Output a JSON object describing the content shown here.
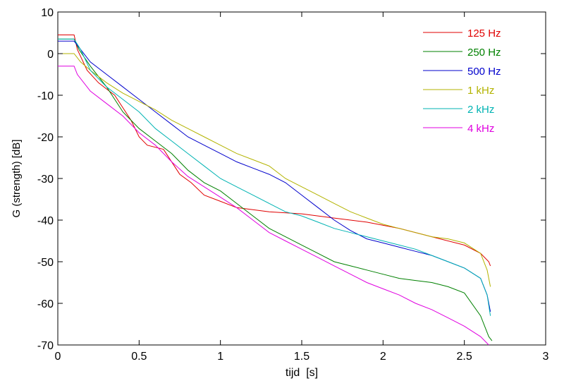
{
  "chart_data": {
    "type": "line",
    "xlabel": "tijd  [s]",
    "ylabel": "G (strength) [dB]",
    "xlim": [
      0,
      3
    ],
    "ylim": [
      -70,
      10
    ],
    "x_ticks": [
      0,
      0.5,
      1,
      1.5,
      2,
      2.5,
      3
    ],
    "x_tick_labels": [
      "0",
      "0.5",
      "1",
      "1.5",
      "2",
      "2.5",
      "3"
    ],
    "y_ticks": [
      10,
      0,
      -10,
      -20,
      -30,
      -40,
      -50,
      -60,
      -70
    ],
    "y_tick_labels": [
      "10",
      "0",
      "-10",
      "-20",
      "-30",
      "-40",
      "-50",
      "-60",
      "-70"
    ],
    "grid": false,
    "legend_position": "top-right",
    "series": [
      {
        "name": "125 Hz",
        "color": "#e00000",
        "x": [
          0,
          0.1,
          0.12,
          0.18,
          0.25,
          0.35,
          0.45,
          0.5,
          0.55,
          0.65,
          0.75,
          0.82,
          0.9,
          1.0,
          1.1,
          1.3,
          1.5,
          1.7,
          1.9,
          2.1,
          2.3,
          2.5,
          2.6,
          2.65,
          2.66
        ],
        "y": [
          4.5,
          4.5,
          1,
          -4,
          -7,
          -10,
          -16,
          -20,
          -22,
          -23,
          -29,
          -31,
          -34,
          -35.5,
          -37,
          -38,
          -38.5,
          -39.5,
          -40.5,
          -42,
          -44,
          -46,
          -48,
          -50,
          -51
        ]
      },
      {
        "name": "250 Hz",
        "color": "#008000",
        "x": [
          0,
          0.1,
          0.13,
          0.2,
          0.3,
          0.4,
          0.5,
          0.6,
          0.7,
          0.8,
          0.9,
          1.0,
          1.1,
          1.2,
          1.3,
          1.4,
          1.5,
          1.6,
          1.7,
          1.8,
          1.9,
          2.0,
          2.1,
          2.2,
          2.3,
          2.4,
          2.5,
          2.6,
          2.65,
          2.67
        ],
        "y": [
          3.5,
          3.5,
          1,
          -3,
          -8,
          -14,
          -18,
          -21,
          -24,
          -28,
          -31,
          -33,
          -36,
          -39,
          -42,
          -44,
          -46,
          -48,
          -50,
          -51,
          -52,
          -53,
          -54,
          -54.5,
          -55,
          -56,
          -57.5,
          -63,
          -68,
          -69
        ]
      },
      {
        "name": "500 Hz",
        "color": "#0000cc",
        "x": [
          0,
          0.1,
          0.14,
          0.2,
          0.3,
          0.4,
          0.5,
          0.6,
          0.7,
          0.8,
          0.9,
          1.0,
          1.1,
          1.2,
          1.3,
          1.4,
          1.5,
          1.6,
          1.7,
          1.8,
          1.9,
          2.0,
          2.1,
          2.2,
          2.3,
          2.4,
          2.5,
          2.6,
          2.64,
          2.66
        ],
        "y": [
          3,
          3,
          1,
          -2,
          -5,
          -8,
          -11,
          -14,
          -17,
          -20,
          -22,
          -24,
          -26,
          -27.5,
          -29,
          -31,
          -34,
          -37,
          -40,
          -42.5,
          -44.5,
          -45.5,
          -46.5,
          -47.5,
          -48.5,
          -50,
          -51.5,
          -54,
          -58,
          -62
        ]
      },
      {
        "name": " 1 kHz",
        "color": "#b3b300",
        "x": [
          0,
          0.1,
          0.14,
          0.2,
          0.3,
          0.4,
          0.5,
          0.6,
          0.7,
          0.8,
          0.9,
          1.0,
          1.1,
          1.2,
          1.3,
          1.4,
          1.5,
          1.6,
          1.7,
          1.8,
          1.9,
          2.0,
          2.1,
          2.2,
          2.3,
          2.4,
          2.5,
          2.6,
          2.64,
          2.66
        ],
        "y": [
          0,
          0,
          -2,
          -4,
          -7,
          -9.5,
          -11.5,
          -13.5,
          -16,
          -18,
          -20,
          -22,
          -24,
          -25.5,
          -27,
          -30,
          -32,
          -34,
          -36,
          -38,
          -39.5,
          -41,
          -42,
          -43,
          -44,
          -44.5,
          -45.5,
          -48,
          -52,
          -56
        ]
      },
      {
        "name": "2 kHz",
        "color": "#00b3b3",
        "x": [
          0,
          0.1,
          0.14,
          0.2,
          0.3,
          0.4,
          0.5,
          0.6,
          0.7,
          0.8,
          0.9,
          1.0,
          1.1,
          1.2,
          1.3,
          1.4,
          1.5,
          1.6,
          1.7,
          1.8,
          1.9,
          2.0,
          2.1,
          2.2,
          2.3,
          2.4,
          2.5,
          2.6,
          2.64,
          2.66
        ],
        "y": [
          3.5,
          3.5,
          1,
          -4,
          -8,
          -11,
          -14,
          -18,
          -21,
          -24,
          -27,
          -30,
          -32,
          -34,
          -36,
          -38,
          -39,
          -40.5,
          -42,
          -43,
          -44,
          -45,
          -46,
          -47,
          -48.5,
          -50,
          -51.5,
          -54,
          -58,
          -63
        ]
      },
      {
        "name": "4 kHz",
        "color": "#e000e0",
        "x": [
          0,
          0.1,
          0.12,
          0.2,
          0.3,
          0.4,
          0.5,
          0.6,
          0.7,
          0.8,
          0.9,
          1.0,
          1.1,
          1.2,
          1.3,
          1.4,
          1.5,
          1.6,
          1.7,
          1.8,
          1.9,
          2.0,
          2.1,
          2.2,
          2.3,
          2.4,
          2.5,
          2.6,
          2.65
        ],
        "y": [
          -3,
          -3,
          -5,
          -9,
          -12,
          -15,
          -19,
          -22,
          -26,
          -29.5,
          -32,
          -34.5,
          -37,
          -40,
          -43,
          -45,
          -47,
          -49,
          -51,
          -53,
          -55,
          -56.5,
          -58,
          -60,
          -61.5,
          -63.5,
          -65.5,
          -68,
          -70
        ]
      }
    ]
  }
}
